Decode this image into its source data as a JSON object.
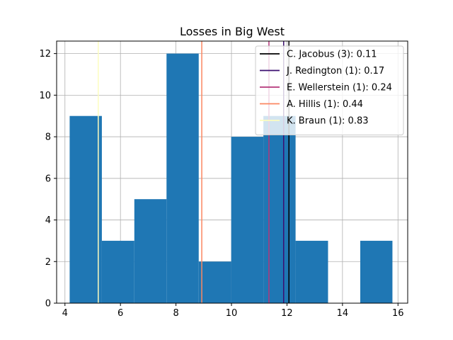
{
  "chart_data": {
    "type": "bar",
    "title": "Losses in Big West",
    "xlabel": "",
    "ylabel": "",
    "xlim": [
      3.7,
      16.35
    ],
    "ylim": [
      0,
      12.6
    ],
    "xticks": [
      4,
      6,
      8,
      10,
      12,
      14,
      16
    ],
    "yticks": [
      0,
      2,
      4,
      6,
      8,
      10,
      12
    ],
    "grid": true,
    "bar_color": "#1f77b4",
    "bins": [
      {
        "x0": 4.17,
        "x1": 5.33,
        "count": 9
      },
      {
        "x0": 5.33,
        "x1": 6.5,
        "count": 3
      },
      {
        "x0": 6.5,
        "x1": 7.66,
        "count": 5
      },
      {
        "x0": 7.66,
        "x1": 8.82,
        "count": 12
      },
      {
        "x0": 8.82,
        "x1": 9.99,
        "count": 2
      },
      {
        "x0": 9.99,
        "x1": 11.15,
        "count": 8
      },
      {
        "x0": 11.15,
        "x1": 12.31,
        "count": 9
      },
      {
        "x0": 12.31,
        "x1": 13.48,
        "count": 3
      },
      {
        "x0": 13.48,
        "x1": 14.64,
        "count": 0
      },
      {
        "x0": 14.64,
        "x1": 15.8,
        "count": 3
      }
    ],
    "vlines": [
      {
        "label": "C. Jacobus (3): 0.11",
        "x": 12.07,
        "color": "#000000"
      },
      {
        "label": "J. Redington (1): 0.17",
        "x": 11.88,
        "color": "#3b0f70"
      },
      {
        "label": "E. Wellerstein (1): 0.24",
        "x": 11.35,
        "color": "#b5367a"
      },
      {
        "label": "A. Hillis (1): 0.44",
        "x": 8.93,
        "color": "#fb8761"
      },
      {
        "label": "K. Braun (1): 0.83",
        "x": 5.2,
        "color": "#fcfdbf"
      }
    ],
    "legend_position": "top-right"
  }
}
